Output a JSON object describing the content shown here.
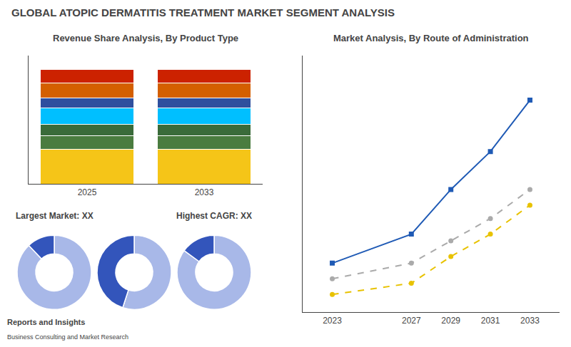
{
  "title": "GLOBAL ATOPIC DERMATITIS TREATMENT MARKET SEGMENT ANALYSIS",
  "annotations": [
    "Reports and Insights",
    "Business Consulting and Market Research"
  ],
  "chart_data": [
    {
      "type": "bar",
      "title": "Revenue Share Analysis, By Product Type",
      "stacked": true,
      "categories": [
        "2025",
        "2033"
      ],
      "series": [
        {
          "color": "#f5c518",
          "values": [
            0.3,
            0.3
          ]
        },
        {
          "color": "#4a7c3f",
          "values": [
            0.12,
            0.12
          ]
        },
        {
          "color": "#3a6b3a",
          "values": [
            0.1,
            0.1
          ]
        },
        {
          "color": "#00bfff",
          "values": [
            0.14,
            0.14
          ]
        },
        {
          "color": "#2f4f9e",
          "values": [
            0.09,
            0.09
          ]
        },
        {
          "color": "#d45f00",
          "values": [
            0.13,
            0.13
          ]
        },
        {
          "color": "#cc2200",
          "values": [
            0.12,
            0.12
          ]
        }
      ],
      "ylim": [
        0,
        1.12
      ],
      "yticks": [],
      "tick_labels": "x"
    },
    {
      "type": "pie",
      "title": "Largest Market: XX",
      "values": [
        88,
        12
      ],
      "colors": [
        "#a8b8e8",
        "#3355bb"
      ]
    },
    {
      "type": "pie",
      "values": [
        55,
        45
      ],
      "colors": [
        "#a8b8e8",
        "#3355bb"
      ]
    },
    {
      "type": "pie",
      "title": "Highest CAGR: XX",
      "values": [
        85,
        15
      ],
      "colors": [
        "#a8b8e8",
        "#3355bb"
      ]
    },
    {
      "type": "line",
      "title": "Market Analysis, By Route of Administration",
      "x": [
        2023,
        2027,
        2029,
        2031,
        2033
      ],
      "xlim": [
        2021.5,
        2034.5
      ],
      "xticks": [
        2023,
        2027,
        2029,
        2031,
        2033
      ],
      "ylim": [
        0,
        11.5
      ],
      "yticks": [],
      "tick_labels": "x",
      "grid": false,
      "series": [
        {
          "color": "#1f5ab5",
          "marker": "square",
          "line_style": "solid",
          "values": [
            2.2,
            3.5,
            5.5,
            7.2,
            9.5
          ]
        },
        {
          "color": "#aaaaaa",
          "marker": "circle",
          "line_style": "dashed",
          "values": [
            1.5,
            2.2,
            3.2,
            4.2,
            5.5
          ]
        },
        {
          "color": "#e8c200",
          "marker": "circle",
          "line_style": "dashed",
          "values": [
            0.8,
            1.3,
            2.5,
            3.5,
            4.8
          ]
        }
      ]
    }
  ]
}
